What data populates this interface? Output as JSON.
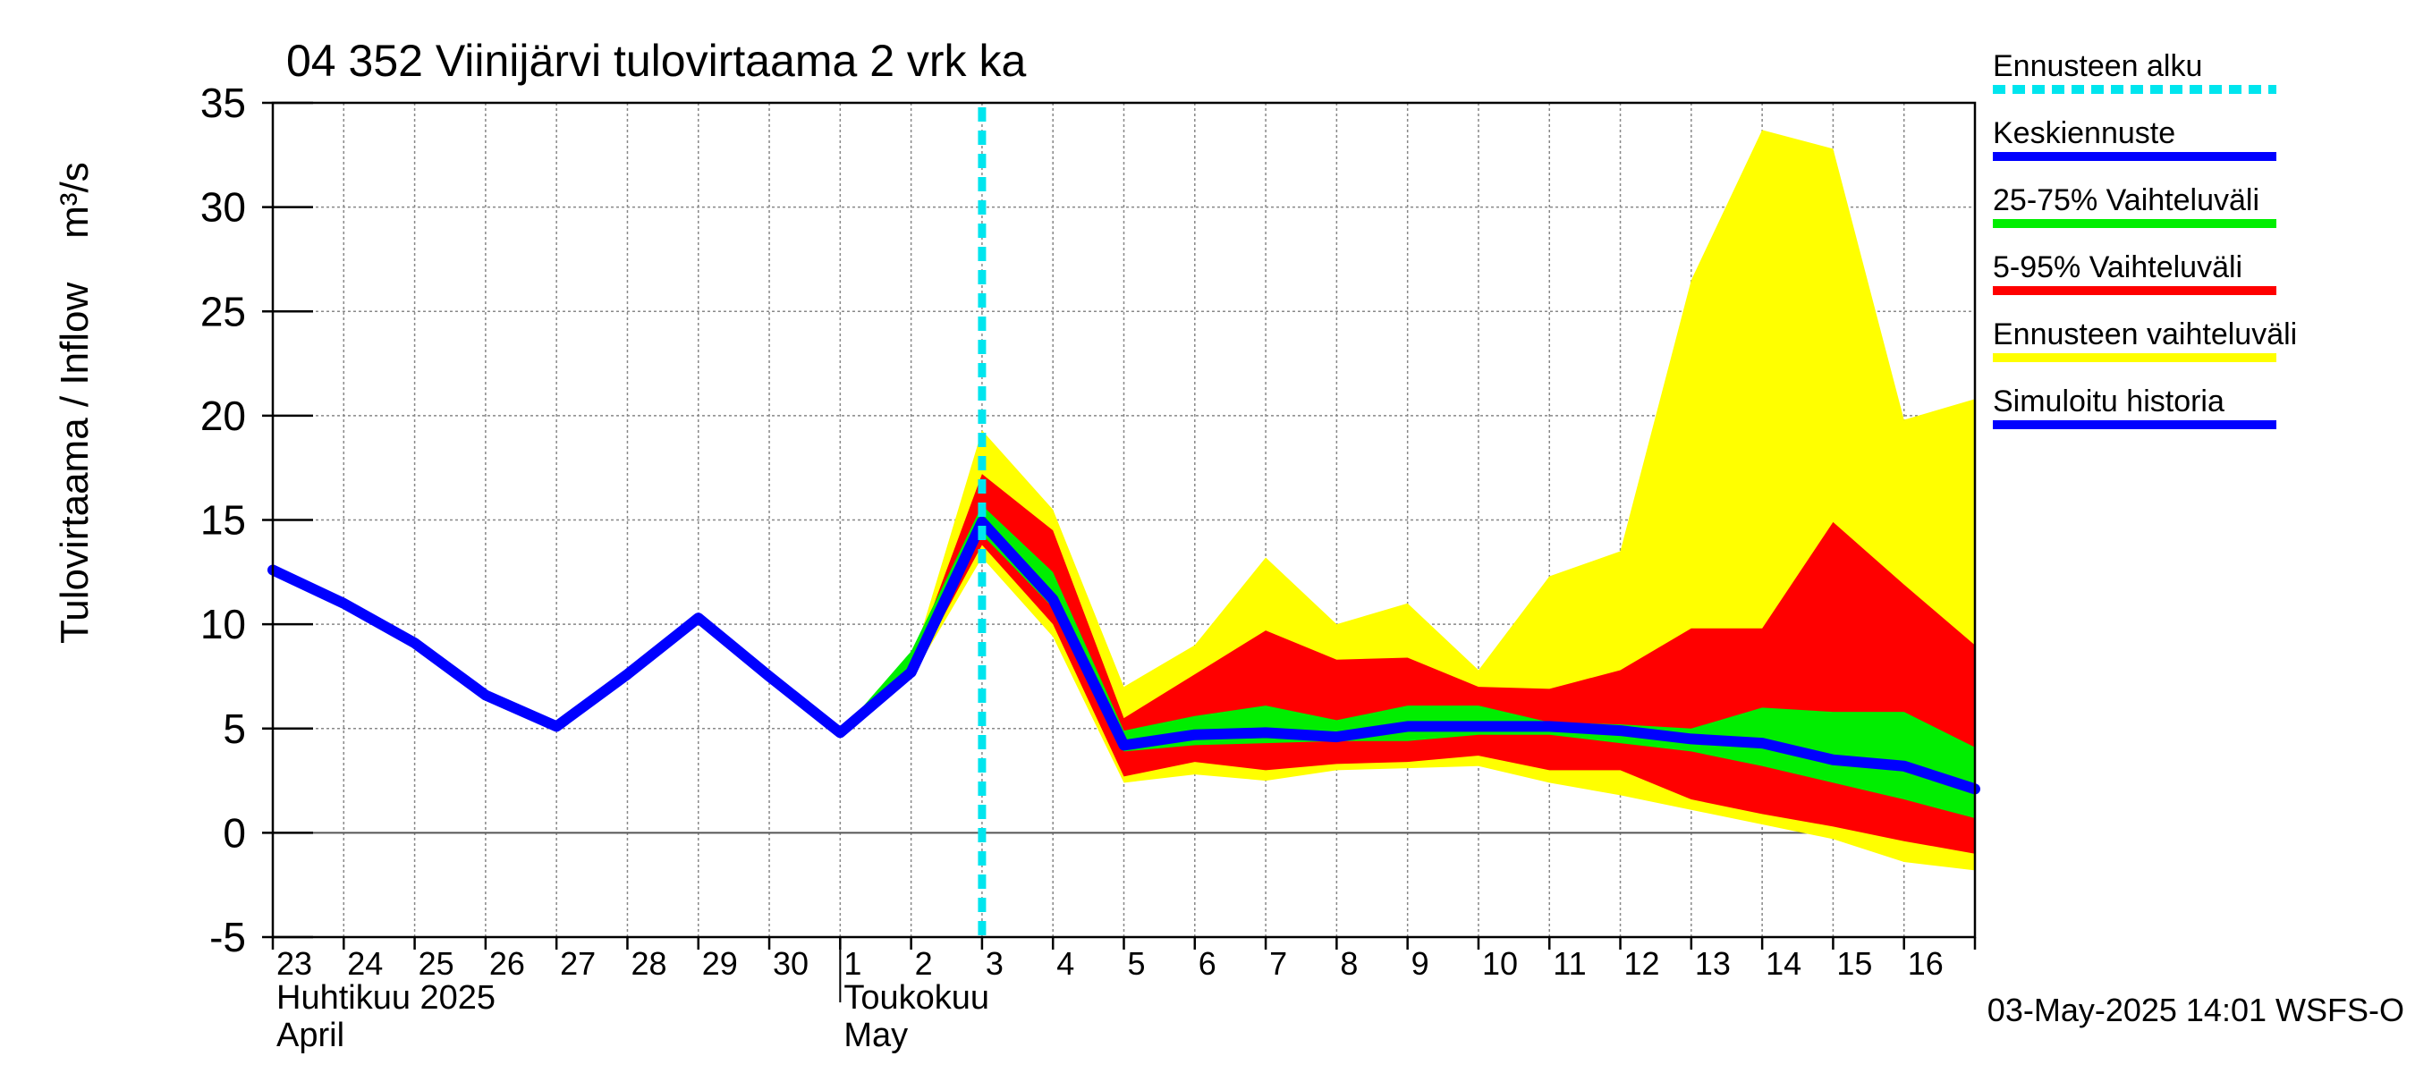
{
  "chart_data": {
    "type": "area",
    "title": "04 352 Viinijärvi tulovirtaama 2 vrk ka",
    "ylabel": "Tulovirtaama / Inflow    m³/s",
    "ylim": [
      -5,
      35
    ],
    "y_ticks": [
      "-5",
      "0",
      "5",
      "10",
      "15",
      "20",
      "25",
      "30",
      "35"
    ],
    "x_range_day_index": [
      0,
      24
    ],
    "x_tick_labels": [
      "23",
      "24",
      "25",
      "26",
      "27",
      "28",
      "29",
      "30",
      "1",
      "2",
      "3",
      "4",
      "5",
      "6",
      "7",
      "8",
      "9",
      "10",
      "11",
      "12",
      "13",
      "14",
      "15",
      "16"
    ],
    "month_labels": [
      {
        "line1": "Huhtikuu  2025",
        "line2": "April"
      },
      {
        "line1": "Toukokuu",
        "line2": "May"
      }
    ],
    "forecast_start_day_index": 10.0,
    "grid": true,
    "legend_placement": "right",
    "timestamp": "03-May-2025 14:01 WSFS-O",
    "x": [
      0,
      1,
      2,
      3,
      4,
      5,
      6,
      7,
      8,
      9,
      10,
      11,
      12,
      13,
      14,
      15,
      16,
      17,
      18,
      19,
      20,
      21,
      22,
      23,
      24
    ],
    "series": [
      {
        "name": "Ennusteen vaihteluväli",
        "color": "#ffff00",
        "kind": "band",
        "upper": [
          null,
          null,
          null,
          null,
          null,
          null,
          null,
          null,
          4.8,
          8.0,
          19.3,
          15.5,
          7.0,
          9.0,
          13.2,
          10.0,
          11.0,
          7.8,
          12.3,
          13.5,
          26.5,
          33.7,
          32.8,
          19.8,
          20.8
        ],
        "lower": [
          null,
          null,
          null,
          null,
          null,
          null,
          null,
          null,
          4.8,
          7.4,
          13.2,
          9.4,
          2.4,
          2.8,
          2.5,
          3.0,
          3.1,
          3.2,
          2.4,
          1.8,
          1.1,
          0.4,
          -0.3,
          -1.4,
          -1.8
        ]
      },
      {
        "name": "5-95% Vaihteluväli",
        "color": "#ff0000",
        "kind": "band",
        "upper": [
          null,
          null,
          null,
          null,
          null,
          null,
          null,
          null,
          4.8,
          8.0,
          17.2,
          14.5,
          5.5,
          7.6,
          9.7,
          8.3,
          8.4,
          7.0,
          6.9,
          7.8,
          9.8,
          9.8,
          14.9,
          11.9,
          9.0
        ],
        "lower": [
          null,
          null,
          null,
          null,
          null,
          null,
          null,
          null,
          4.8,
          7.5,
          13.8,
          10.0,
          2.7,
          3.4,
          3.0,
          3.3,
          3.4,
          3.7,
          3.0,
          3.0,
          1.6,
          0.9,
          0.3,
          -0.4,
          -1.0
        ]
      },
      {
        "name": "25-75% Vaihteluväli",
        "color": "#00ee00",
        "kind": "band",
        "upper": [
          null,
          null,
          null,
          null,
          null,
          null,
          null,
          null,
          4.8,
          8.7,
          15.7,
          12.5,
          4.9,
          5.6,
          6.1,
          5.4,
          6.1,
          6.1,
          5.3,
          5.2,
          5.0,
          6.0,
          5.8,
          5.8,
          4.1
        ],
        "lower": [
          null,
          null,
          null,
          null,
          null,
          null,
          null,
          null,
          4.8,
          7.6,
          14.3,
          10.8,
          3.9,
          4.2,
          4.3,
          4.4,
          4.4,
          4.7,
          4.7,
          4.3,
          3.9,
          3.2,
          2.4,
          1.6,
          0.7
        ]
      },
      {
        "name": "Keskiennuste",
        "color": "#0000ff",
        "kind": "line",
        "values": [
          null,
          null,
          null,
          null,
          null,
          null,
          null,
          null,
          null,
          7.7,
          14.9,
          11.2,
          4.2,
          4.7,
          4.8,
          4.6,
          5.1,
          5.1,
          5.1,
          4.9,
          4.5,
          4.3,
          3.5,
          3.2,
          2.1
        ]
      },
      {
        "name": "Simuloitu historia",
        "color": "#0000ff",
        "kind": "line",
        "values": [
          12.6,
          11.0,
          9.1,
          6.6,
          5.1,
          7.6,
          10.3,
          7.5,
          4.8,
          7.7,
          14.9,
          null,
          null,
          null,
          null,
          null,
          null,
          null,
          null,
          null,
          null,
          null,
          null,
          null,
          null
        ]
      }
    ],
    "legend": [
      {
        "label": "Ennusteen alku",
        "color": "#00e5ee",
        "style": "dashed"
      },
      {
        "label": "Keskiennuste",
        "color": "#0000ff",
        "style": "solid"
      },
      {
        "label": "25-75% Vaihteluväli",
        "color": "#00ee00",
        "style": "solid"
      },
      {
        "label": "5-95% Vaihteluväli",
        "color": "#ff0000",
        "style": "solid"
      },
      {
        "label": "Ennusteen vaihteluväli",
        "color": "#ffff00",
        "style": "solid"
      },
      {
        "label": "Simuloitu historia",
        "color": "#0000ff",
        "style": "solid"
      }
    ]
  }
}
